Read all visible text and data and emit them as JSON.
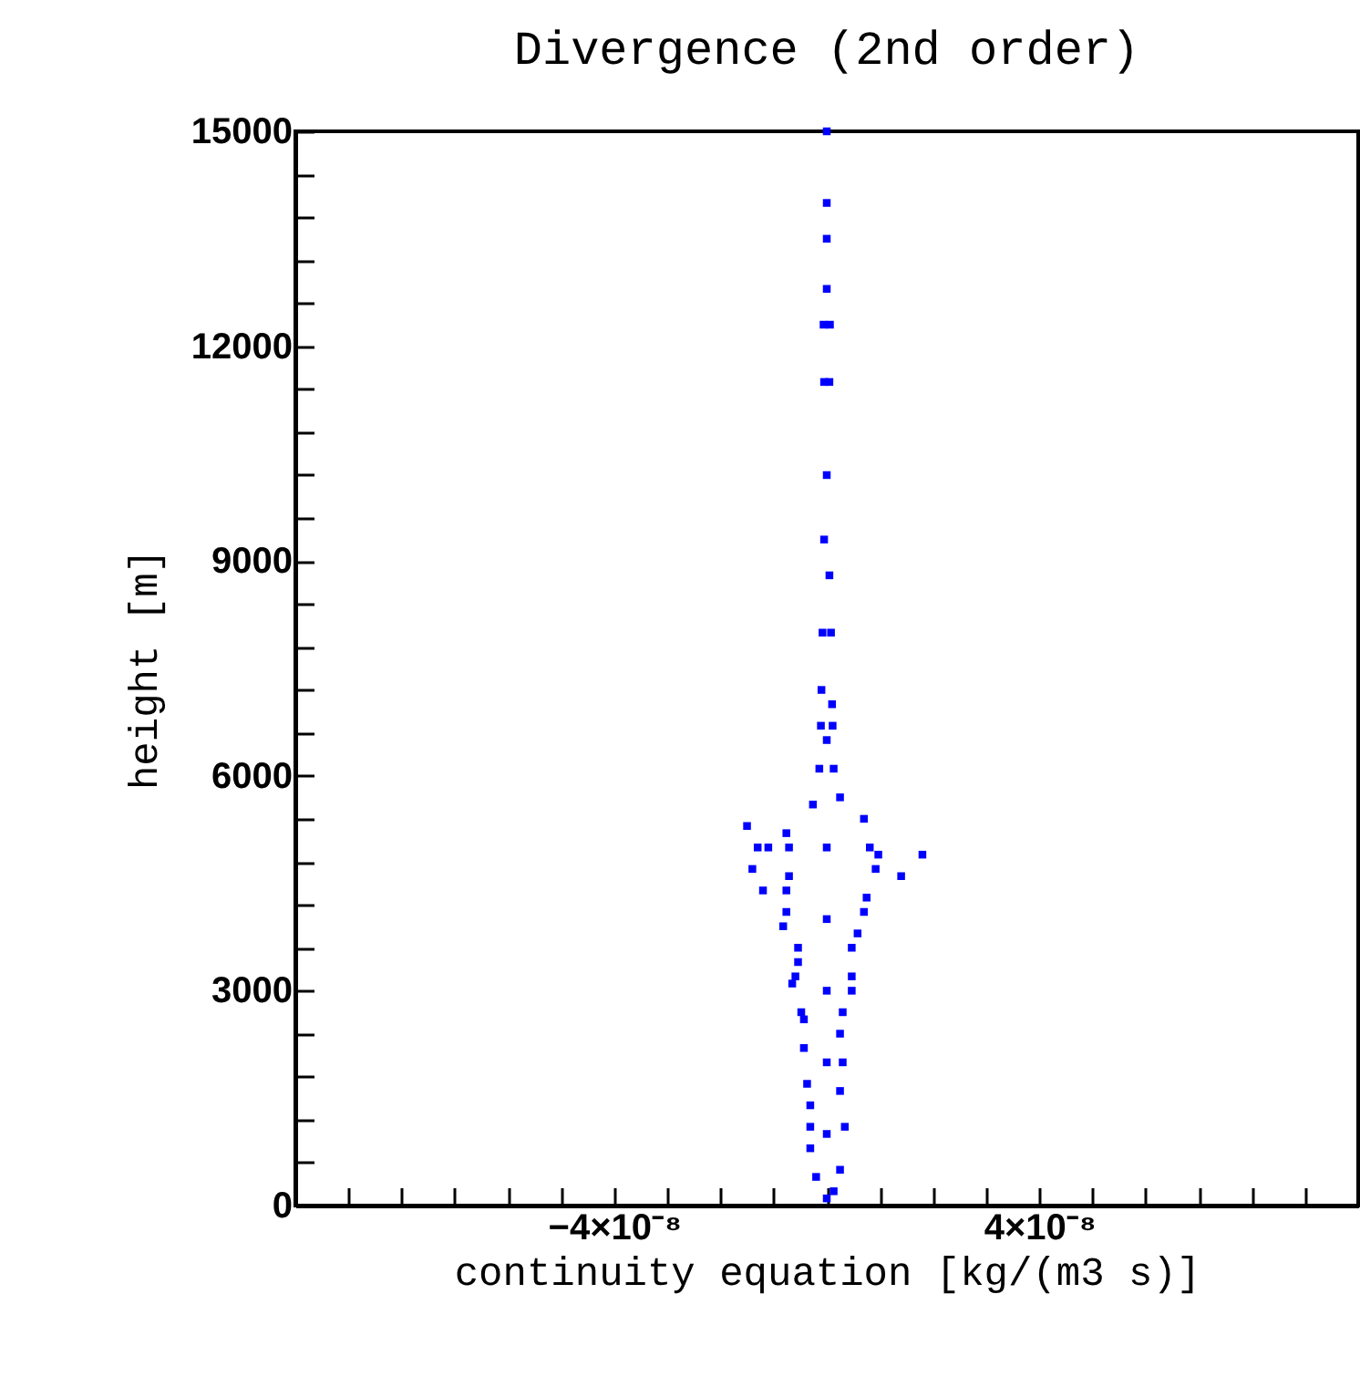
{
  "chart_data": {
    "type": "scatter",
    "title": "Divergence (2nd order)",
    "xlabel": "continuity equation [kg/(m3 s)]",
    "ylabel": "height [m]",
    "x": [
      0,
      0,
      0,
      0,
      6e-10,
      -6e-10,
      5e-10,
      -5e-10,
      0,
      -5e-10,
      5e-10,
      8e-10,
      -8e-10,
      -1e-09,
      1e-09,
      1.1e-09,
      -1.1e-09,
      0,
      -1.4e-09,
      1.3e-09,
      -2.6e-09,
      2.5e-09,
      -1.5e-08,
      -1.3e-08,
      -1.1e-08,
      -1.4e-08,
      -1.2e-08,
      1.8e-08,
      1.4e-08,
      7e-09,
      9.7e-09,
      -7.6e-09,
      -7.6e-09,
      -8.2e-09,
      -5.4e-09,
      -5.4e-09,
      -6.5e-09,
      7.5e-09,
      4.7e-09,
      4.7e-09,
      3e-09,
      -4.8e-09,
      -4.3e-09,
      3e-09,
      -3.1e-09,
      3.4e-09,
      -3.1e-09,
      2.5e-09,
      -2e-09,
      1.3e-09,
      0,
      -7.1e-09,
      8.1e-09,
      9.2e-09,
      -7.1e-09,
      -7.6e-09,
      7e-09,
      5.8e-09,
      -5.9e-09,
      4.7e-09,
      -4.3e-09,
      2.5e-09,
      -3.7e-09,
      2.5e-09,
      -3.1e-09,
      0,
      0,
      0,
      0,
      0
    ],
    "values": [
      15000,
      14000,
      13500,
      12800,
      12300,
      12300,
      11500,
      11500,
      10200,
      9300,
      8800,
      8000,
      8000,
      7200,
      7000,
      6700,
      6700,
      6500,
      6100,
      6100,
      5600,
      5700,
      5300,
      5000,
      5000,
      4700,
      4400,
      4900,
      4600,
      5400,
      4900,
      5200,
      4400,
      3900,
      3600,
      3400,
      3100,
      4300,
      3600,
      3000,
      2700,
      2700,
      2200,
      2000,
      1400,
      1100,
      800,
      500,
      400,
      200,
      100,
      5000,
      5000,
      4700,
      4600,
      4100,
      4100,
      3800,
      3200,
      3200,
      2600,
      2400,
      1700,
      1600,
      1100,
      5000,
      4000,
      3000,
      2000,
      1000
    ],
    "color": "#0000ff",
    "marker": "square",
    "grid": false,
    "xlim": [
      -1e-07,
      1e-07
    ],
    "ylim": [
      0,
      15000
    ],
    "xticks": [
      {
        "value": -9e-08,
        "label": null
      },
      {
        "value": -8e-08,
        "label": null
      },
      {
        "value": -7e-08,
        "label": null
      },
      {
        "value": -6e-08,
        "label": null
      },
      {
        "value": -5e-08,
        "label": null
      },
      {
        "value": -4e-08,
        "label": "−4×10⁻⁸"
      },
      {
        "value": -3e-08,
        "label": null
      },
      {
        "value": -2e-08,
        "label": null
      },
      {
        "value": -1e-08,
        "label": null
      },
      {
        "value": 0,
        "label": null
      },
      {
        "value": 1e-08,
        "label": null
      },
      {
        "value": 2e-08,
        "label": null
      },
      {
        "value": 3e-08,
        "label": null
      },
      {
        "value": 4e-08,
        "label": "4×10⁻⁸"
      },
      {
        "value": 5e-08,
        "label": null
      },
      {
        "value": 6e-08,
        "label": null
      },
      {
        "value": 7e-08,
        "label": null
      },
      {
        "value": 8e-08,
        "label": null
      },
      {
        "value": 9e-08,
        "label": null
      }
    ],
    "yticks": [
      0,
      {
        "value": 600,
        "label": null
      },
      {
        "value": 1200,
        "label": null
      },
      {
        "value": 1800,
        "label": null
      },
      {
        "value": 2400,
        "label": null
      },
      3000,
      {
        "value": 3600,
        "label": null
      },
      {
        "value": 4200,
        "label": null
      },
      {
        "value": 4800,
        "label": null
      },
      {
        "value": 5400,
        "label": null
      },
      6000,
      {
        "value": 6600,
        "label": null
      },
      {
        "value": 7200,
        "label": null
      },
      {
        "value": 7800,
        "label": null
      },
      {
        "value": 8400,
        "label": null
      },
      9000,
      {
        "value": 9600,
        "label": null
      },
      {
        "value": 10200,
        "label": null
      },
      {
        "value": 10800,
        "label": null
      },
      {
        "value": 11400,
        "label": null
      },
      12000,
      {
        "value": 12600,
        "label": null
      },
      {
        "value": 13200,
        "label": null
      },
      {
        "value": 13800,
        "label": null
      },
      {
        "value": 14400,
        "label": null
      },
      15000
    ]
  }
}
